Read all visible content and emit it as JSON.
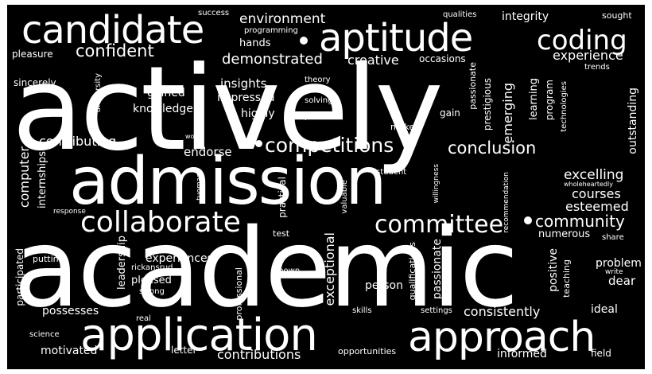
{
  "words": {
    "actively": "actively",
    "academic": "academic",
    "admission": "admission",
    "application": "application",
    "approach": "approach",
    "candidate": "candidate",
    "aptitude": "aptitude",
    "coding": "coding",
    "collaborate": "collaborate",
    "committee": "committee",
    "competitions": "competitions",
    "conclusion": "conclusion",
    "community": "community",
    "confident": "confident",
    "environment": "environment",
    "demonstrated": "demonstrated",
    "creative": "creative",
    "experience": "experience",
    "excelling": "excelling",
    "courses": "courses",
    "esteemed": "esteemed",
    "numerous": "numerous",
    "contributing": "contributing",
    "endorse": "endorse",
    "computer": "computer",
    "knowledge": "knowledge",
    "gained": "gained",
    "impressed": "impressed",
    "insights": "insights",
    "highly": "highly",
    "hands": "hands",
    "success": "success",
    "programming": "programming",
    "qualities": "qualities",
    "integrity": "integrity",
    "sought": "sought",
    "pleasure": "pleasure",
    "sincerely": "sincerely",
    "occasions": "occasions",
    "theory": "theory",
    "solving": "solving",
    "pursuits": "pursuits",
    "make": "make",
    "gain": "gain",
    "emerging": "emerging",
    "prestigious": "prestigious",
    "passionate": "passionate",
    "learning": "learning",
    "program": "program",
    "technologies": "technologies",
    "trends": "trends",
    "outstanding": "outstanding",
    "university": "university",
    "world": "world",
    "internships": "internships",
    "response": "response",
    "leadership": "leadership",
    "tuomas": "tuomas",
    "practical": "practical",
    "valuable": "valuable",
    "student": "student",
    "willingness": "willingness",
    "recommendation": "recommendation",
    "wholeheartedly": "wholeheartedly",
    "test": "test",
    "exceptional": "exceptional",
    "professional": "professional",
    "qualifications": "qualifications",
    "positive": "positive",
    "teaching": "teaching",
    "share": "share",
    "write": "write",
    "problem": "problem",
    "dear": "dear",
    "experiences": "experiences",
    "rickansrud": "rickansrud",
    "pleased": "pleased",
    "strong": "strong",
    "shown": "shown",
    "person": "person",
    "putting": "putting",
    "participated": "participated",
    "possesses": "possesses",
    "real": "real",
    "science": "science",
    "motivated": "motivated",
    "letter": "letter",
    "contributions": "contributions",
    "opportunities": "opportunities",
    "informed": "informed",
    "field": "field",
    "skills": "skills",
    "settings": "settings",
    "consistently": "consistently",
    "ideal": "ideal"
  },
  "colors": {
    "background": "#000000",
    "text": "#ffffff",
    "frame": "#ffffff"
  }
}
